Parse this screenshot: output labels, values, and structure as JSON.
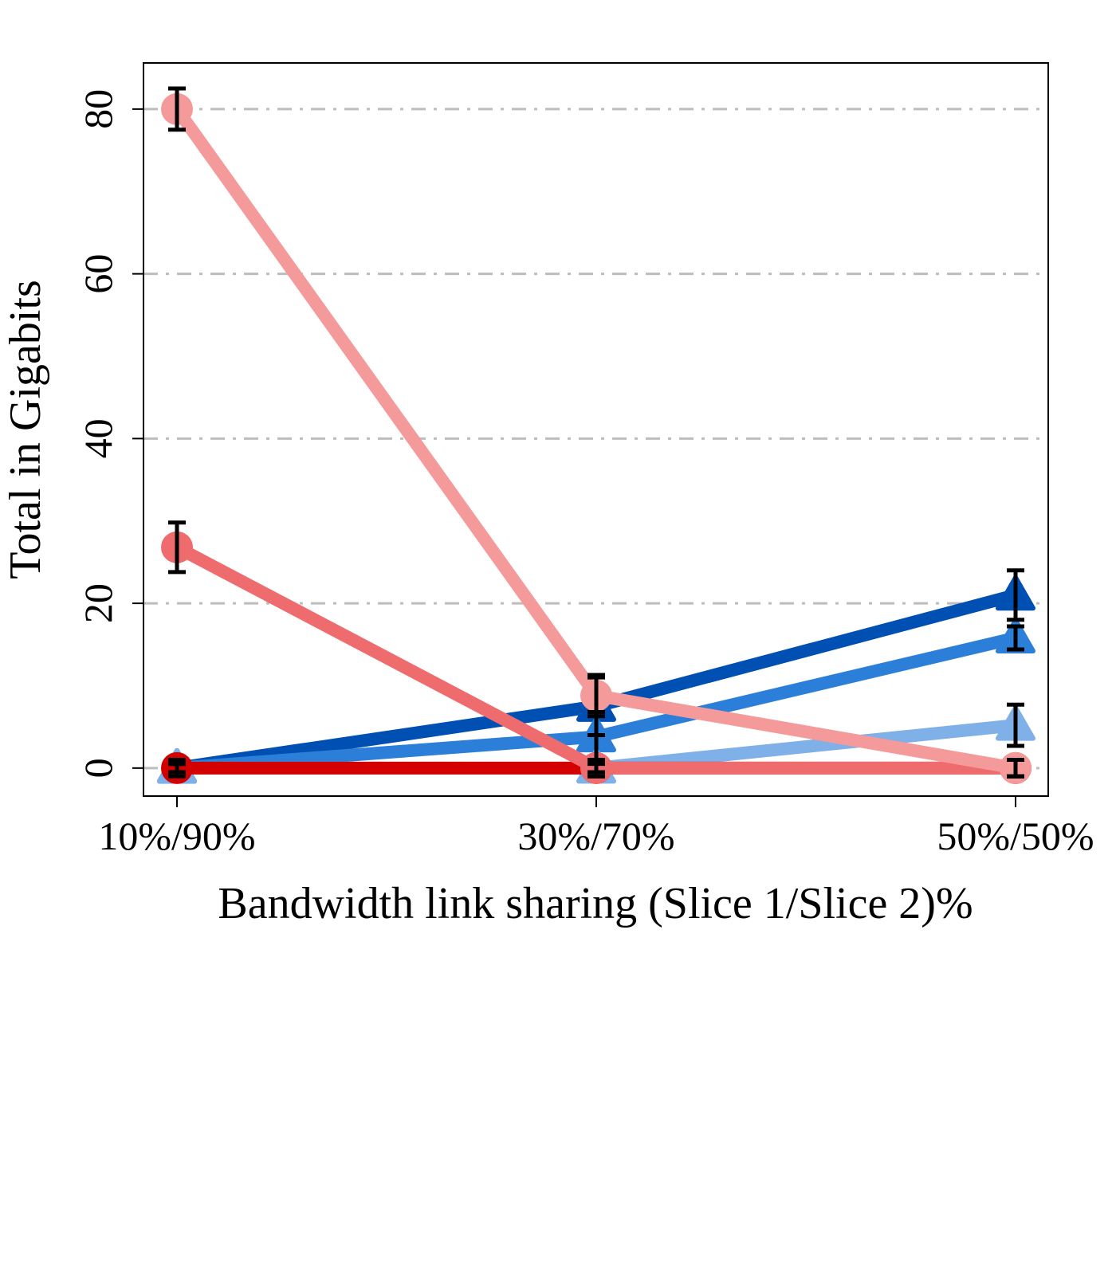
{
  "chart_data": {
    "type": "line",
    "title": "",
    "xlabel": "Bandwidth link sharing (Slice 1/Slice 2)%",
    "ylabel": "Total in Gigabits",
    "categories": [
      "10%/90%",
      "30%/70%",
      "50%/50%"
    ],
    "yticks": [
      "0",
      "20",
      "40",
      "60",
      "80"
    ],
    "ylim": [
      -3.4,
      85.6
    ],
    "grid": "horizontal dash-dot, light gray",
    "legend": "none",
    "series": [
      {
        "color": "#0050b3",
        "marker": "triangle",
        "values": [
          0,
          7.5,
          21
        ],
        "err": [
          0.5,
          3.5,
          3
        ]
      },
      {
        "color": "#2b7fd8",
        "marker": "triangle",
        "values": [
          0,
          3.8,
          15.8
        ],
        "err": [
          0.5,
          3,
          1.4
        ]
      },
      {
        "color": "#7fb0e8",
        "marker": "triangle",
        "values": [
          0,
          0,
          5.2
        ],
        "err": [
          0.5,
          0.5,
          2.5
        ]
      },
      {
        "color": "#d40000",
        "marker": "circle",
        "values": [
          0,
          0,
          0
        ],
        "err": [
          1,
          1,
          1
        ]
      },
      {
        "color": "#ef6c6e",
        "marker": "circle",
        "values": [
          26.8,
          0,
          0
        ],
        "err": [
          3,
          1,
          1
        ]
      },
      {
        "color": "#f59a9a",
        "marker": "circle",
        "values": [
          80,
          8.8,
          0
        ],
        "err": [
          2.5,
          2.5,
          1
        ]
      }
    ]
  }
}
